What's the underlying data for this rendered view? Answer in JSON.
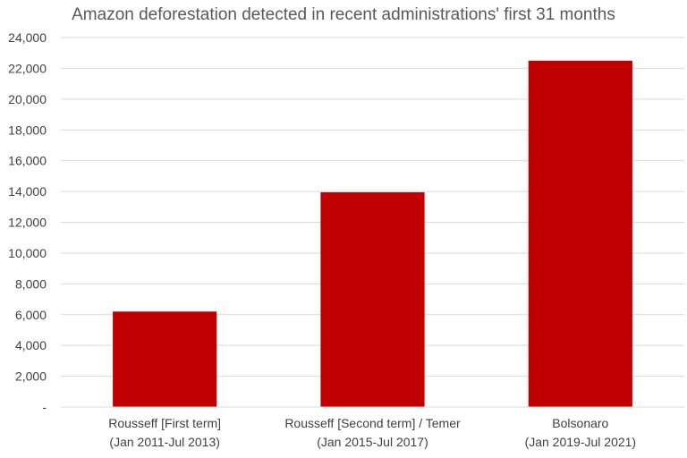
{
  "chart_data": {
    "type": "bar",
    "title": "Amazon deforestation detected in recent administrations' first 31 months",
    "xlabel": "",
    "ylabel": "",
    "categories": [
      [
        "Rousseff [First term]",
        "(Jan 2011-Jul 2013)"
      ],
      [
        "Rousseff [Second term] / Temer",
        "(Jan 2015-Jul 2017)"
      ],
      [
        "Bolsonaro",
        "(Jan 2019-Jul 2021)"
      ]
    ],
    "values": [
      6200,
      13950,
      22500
    ],
    "ylim": [
      0,
      24000
    ],
    "ytick_step": 2000,
    "ytick_labels": [
      "-",
      "2,000",
      "4,000",
      "6,000",
      "8,000",
      "10,000",
      "12,000",
      "14,000",
      "16,000",
      "18,000",
      "20,000",
      "22,000",
      "24,000"
    ],
    "grid": true,
    "legend": "none",
    "bar_color": "#c00000",
    "grid_color": "#d9d9d9",
    "text_color": "#404040",
    "title_color": "#595959"
  }
}
